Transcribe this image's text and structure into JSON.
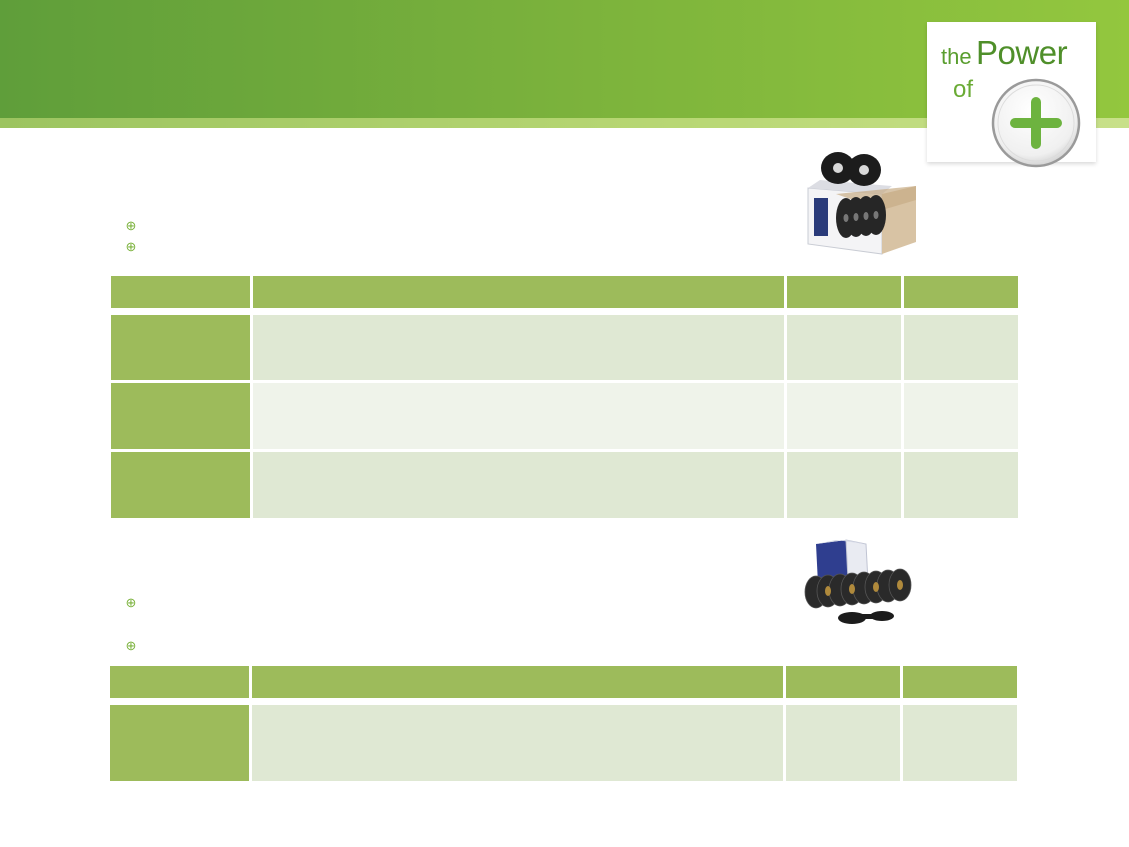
{
  "logo": {
    "line1_small": "the",
    "line1_large": "Power",
    "line2": "of"
  },
  "colors": {
    "header_green": "#7bb23c",
    "table_header": "#9dbb5b",
    "row_light": "#dfe8d3",
    "row_lighter": "#eff3ea"
  },
  "product_images": [
    {
      "name": "ribbon-box-product-image"
    },
    {
      "name": "ribbon-spools-product-image"
    }
  ],
  "section1": {
    "bullets": [
      "",
      ""
    ],
    "table": {
      "columns": [
        "",
        "",
        "",
        ""
      ],
      "rows": [
        [
          "",
          "",
          "",
          ""
        ],
        [
          "",
          "",
          "",
          ""
        ],
        [
          "",
          "",
          "",
          ""
        ]
      ]
    }
  },
  "section2": {
    "bullets": [
      "",
      ""
    ],
    "table": {
      "columns": [
        "",
        "",
        "",
        ""
      ],
      "rows": [
        [
          "",
          "",
          "",
          ""
        ]
      ]
    }
  }
}
